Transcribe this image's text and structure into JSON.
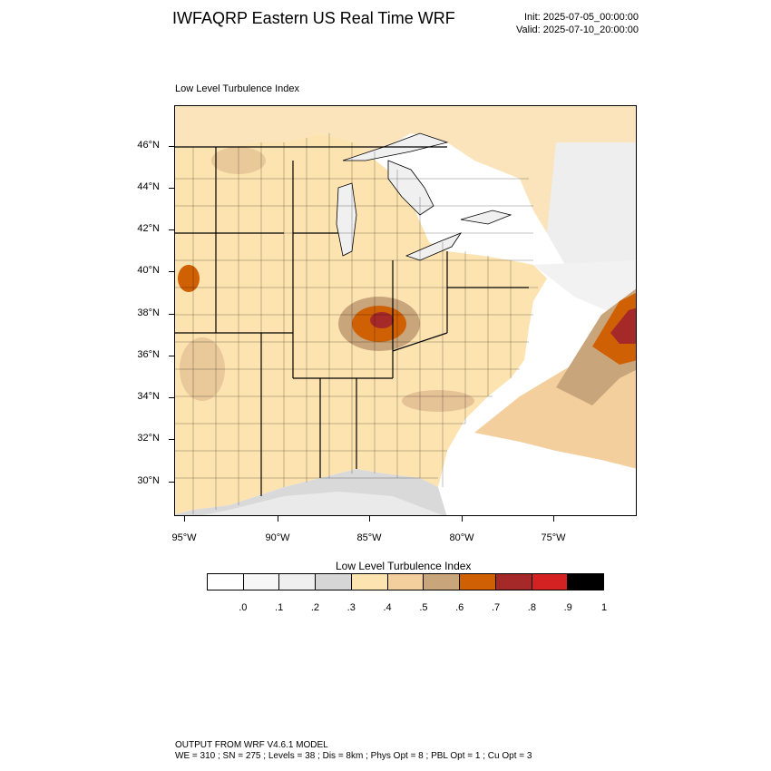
{
  "header": {
    "title": "IWFAQRP Eastern US Real Time WRF",
    "init": "Init: 2025-07-05_00:00:00",
    "valid": "Valid: 2025-07-10_20:00:00"
  },
  "panel": {
    "title": "Low Level Turbulence Index"
  },
  "axes": {
    "lat_labels": [
      "46°N",
      "44°N",
      "42°N",
      "40°N",
      "38°N",
      "36°N",
      "34°N",
      "32°N",
      "30°N"
    ],
    "lon_labels": [
      "95°W",
      "90°W",
      "85°W",
      "80°W",
      "75°W"
    ]
  },
  "map_layers": {
    "land_color": "#fde3b0",
    "water_color": "#ffffff",
    "lake_color": "#f2f2f2",
    "border_color": "#000000"
  },
  "colorbar": {
    "title": "Low Level Turbulence Index",
    "colors": [
      "#ffffff",
      "#f7f7f7",
      "#efefef",
      "#d6d6d6",
      "#fde3b0",
      "#f3cf9e",
      "#c9a57c",
      "#cf6004",
      "#a6292a",
      "#d42222",
      "#000000"
    ],
    "labels": [
      ".0",
      ".1",
      ".2",
      ".3",
      ".4",
      ".5",
      ".6",
      ".7",
      ".8",
      ".9",
      "1"
    ]
  },
  "footer": {
    "line1": "OUTPUT FROM WRF V4.6.1 MODEL",
    "line2": "WE = 310 ; SN = 275 ; Levels = 38 ; Dis = 8km ; Phys Opt = 8 ; PBL Opt = 1 ; Cu Opt = 3"
  }
}
